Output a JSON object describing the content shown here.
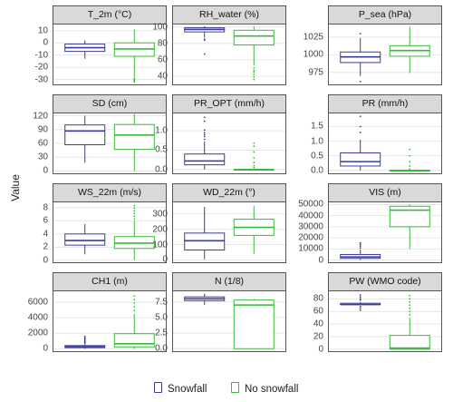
{
  "y_axis_label": "Value",
  "colors": {
    "snowfall": "#3b3b98",
    "no_snowfall": "#3ab93a",
    "grid": "#e6e6e6",
    "frame": "#555555"
  },
  "legend": [
    {
      "label": "Snowfall",
      "color": "#3b3b98"
    },
    {
      "label": "No snowfall",
      "color": "#3ab93a"
    }
  ],
  "chart_data": [
    {
      "type": "box",
      "title": "T_2m (°C)",
      "ylim": [
        -34,
        15
      ],
      "yticks": [
        "10",
        "0",
        "-10",
        "-20",
        "-30"
      ],
      "ytick_values": [
        10,
        0,
        -10,
        -20,
        -30
      ],
      "series": [
        {
          "name": "Snowfall",
          "whisker_low": -13,
          "q1": -7,
          "median": -4,
          "q3": -1,
          "whisker_high": 2,
          "outliers": []
        },
        {
          "name": "No snowfall",
          "whisker_low": -28,
          "q1": -11,
          "median": -5,
          "q3": 0,
          "whisker_high": 11,
          "outliers": [
            -29,
            -30,
            -31,
            -32
          ]
        }
      ]
    },
    {
      "type": "box",
      "title": "RH_water (%)",
      "ylim": [
        30,
        103
      ],
      "yticks": [
        "100",
        "80",
        "60",
        "40"
      ],
      "ytick_values": [
        100,
        80,
        60,
        40
      ],
      "series": [
        {
          "name": "Snowfall",
          "whisker_low": 87,
          "q1": 94,
          "median": 97,
          "q3": 99,
          "whisker_high": 101,
          "outliers": [
            85,
            84,
            67
          ]
        },
        {
          "name": "No snowfall",
          "whisker_low": 53,
          "q1": 78,
          "median": 89,
          "q3": 96,
          "whisker_high": 101,
          "outliers": [
            50,
            47,
            45,
            42,
            39,
            36
          ]
        }
      ]
    },
    {
      "type": "box",
      "title": "P_sea (hPa)",
      "ylim": [
        958,
        1043
      ],
      "yticks": [
        "1025",
        "1000",
        "975"
      ],
      "ytick_values": [
        1025,
        1000,
        975
      ],
      "series": [
        {
          "name": "Snowfall",
          "whisker_low": 970,
          "q1": 989,
          "median": 997,
          "q3": 1004,
          "whisker_high": 1024,
          "outliers": [
            1030,
            962
          ]
        },
        {
          "name": "No snowfall",
          "whisker_low": 974,
          "q1": 998,
          "median": 1006,
          "q3": 1013,
          "whisker_high": 1040,
          "outliers": []
        }
      ]
    },
    {
      "type": "box",
      "title": "SD (cm)",
      "ylim": [
        -5,
        125
      ],
      "yticks": [
        "120",
        "90",
        "60",
        "30",
        "0"
      ],
      "ytick_values": [
        120,
        90,
        60,
        30,
        0
      ],
      "series": [
        {
          "name": "Snowfall",
          "whisker_low": 18,
          "q1": 57,
          "median": 87,
          "q3": 100,
          "whisker_high": 120,
          "outliers": []
        },
        {
          "name": "No snowfall",
          "whisker_low": 0,
          "q1": 47,
          "median": 78,
          "q3": 101,
          "whisker_high": 124,
          "outliers": []
        }
      ]
    },
    {
      "type": "box",
      "title": "PR_OPT (mm/h)",
      "ylim": [
        -0.1,
        1.45
      ],
      "yticks": [
        "1.0",
        "0.5",
        "0.0"
      ],
      "ytick_values": [
        1.0,
        0.5,
        0.0
      ],
      "series": [
        {
          "name": "Snowfall",
          "whisker_low": 0.0,
          "q1": 0.12,
          "median": 0.22,
          "q3": 0.4,
          "whisker_high": 0.72,
          "outliers": [
            0.78,
            0.85,
            0.9,
            0.95,
            1.02,
            1.25,
            1.35
          ]
        },
        {
          "name": "No snowfall",
          "whisker_low": 0.0,
          "q1": 0.0,
          "median": 0.0,
          "q3": 0.0,
          "whisker_high": 0.0,
          "outliers": [
            0.05,
            0.1,
            0.18,
            0.3,
            0.45,
            0.6,
            0.68
          ]
        }
      ]
    },
    {
      "type": "box",
      "title": "PR (mm/h)",
      "ylim": [
        -0.1,
        1.95
      ],
      "yticks": [
        "1.5",
        "1.0",
        "0.5",
        "0.0"
      ],
      "ytick_values": [
        1.5,
        1.0,
        0.5,
        0.0
      ],
      "series": [
        {
          "name": "Snowfall",
          "whisker_low": 0.0,
          "q1": 0.15,
          "median": 0.3,
          "q3": 0.6,
          "whisker_high": 1.05,
          "outliers": [
            1.3,
            1.5,
            1.85
          ]
        },
        {
          "name": "No snowfall",
          "whisker_low": 0.0,
          "q1": 0.0,
          "median": 0.0,
          "q3": 0.0,
          "whisker_high": 0.0,
          "outliers": [
            0.05,
            0.15,
            0.3,
            0.5,
            0.72
          ]
        }
      ]
    },
    {
      "type": "box",
      "title": "WS_22m (m/s)",
      "ylim": [
        -0.3,
        8.8
      ],
      "yticks": [
        "8",
        "6",
        "4",
        "2",
        "0"
      ],
      "ytick_values": [
        8,
        6,
        4,
        2,
        0
      ],
      "series": [
        {
          "name": "Snowfall",
          "whisker_low": 0.9,
          "q1": 2.3,
          "median": 3.0,
          "q3": 4.0,
          "whisker_high": 5.5,
          "outliers": []
        },
        {
          "name": "No snowfall",
          "whisker_low": 0.0,
          "q1": 1.8,
          "median": 2.6,
          "q3": 3.6,
          "whisker_high": 6.0,
          "outliers": [
            6.3,
            6.7,
            7.1,
            7.5,
            7.9,
            8.3
          ]
        }
      ]
    },
    {
      "type": "box",
      "title": "WD_22m (°)",
      "ylim": [
        -15,
        375
      ],
      "yticks": [
        "300",
        "200",
        "100",
        "0"
      ],
      "ytick_values": [
        300,
        200,
        100,
        0
      ],
      "series": [
        {
          "name": "Snowfall",
          "whisker_low": 5,
          "q1": 65,
          "median": 125,
          "q3": 175,
          "whisker_high": 345,
          "outliers": []
        },
        {
          "name": "No snowfall",
          "whisker_low": 40,
          "q1": 160,
          "median": 212,
          "q3": 265,
          "whisker_high": 352,
          "outliers": []
        }
      ]
    },
    {
      "type": "box",
      "title": "VIS (m)",
      "ylim": [
        -2000,
        52000
      ],
      "yticks": [
        "50000",
        "40000",
        "30000",
        "20000",
        "10000",
        "0"
      ],
      "ytick_values": [
        50000,
        40000,
        30000,
        20000,
        10000,
        0
      ],
      "series": [
        {
          "name": "Snowfall",
          "whisker_low": 100,
          "q1": 1500,
          "median": 2800,
          "q3": 5000,
          "whisker_high": 9500,
          "outliers": [
            11000,
            12500,
            14000,
            15500
          ]
        },
        {
          "name": "No snowfall",
          "whisker_low": 10000,
          "q1": 30000,
          "median": 45000,
          "q3": 48500,
          "whisker_high": 50000,
          "outliers": []
        }
      ]
    },
    {
      "type": "box",
      "title": "CH1 (m)",
      "ylim": [
        -300,
        7400
      ],
      "yticks": [
        "6000",
        "4000",
        "2000",
        "0"
      ],
      "ytick_values": [
        6000,
        4000,
        2000,
        0
      ],
      "series": [
        {
          "name": "Snowfall",
          "whisker_low": 0,
          "q1": 150,
          "median": 280,
          "q3": 420,
          "whisker_high": 700,
          "outliers": [
            800,
            950,
            1100,
            1250,
            1400,
            1600
          ]
        },
        {
          "name": "No snowfall",
          "whisker_low": 0,
          "q1": 250,
          "median": 650,
          "q3": 1950,
          "whisker_high": 4500,
          "outliers": [
            4900,
            5400,
            5900,
            6300,
            6800
          ]
        }
      ]
    },
    {
      "type": "box",
      "title": "N (1/8)",
      "ylim": [
        -0.4,
        9.2
      ],
      "yticks": [
        "7.5",
        "5.0",
        "2.5",
        "0.0"
      ],
      "ytick_values": [
        7.5,
        5.0,
        2.5,
        0.0
      ],
      "series": [
        {
          "name": "Snowfall",
          "whisker_low": 7.0,
          "q1": 7.7,
          "median": 8.0,
          "q3": 8.3,
          "whisker_high": 8.8,
          "outliers": []
        },
        {
          "name": "No snowfall",
          "whisker_low": 0,
          "q1": 0,
          "median": 7.0,
          "q3": 7.8,
          "whisker_high": 8.0,
          "outliers": []
        }
      ]
    },
    {
      "type": "box",
      "title": "PW (WMO code)",
      "ylim": [
        -3,
        92
      ],
      "yticks": [
        "80",
        "60",
        "40",
        "20",
        "0"
      ],
      "ytick_values": [
        80,
        60,
        40,
        20,
        0
      ],
      "series": [
        {
          "name": "Snowfall",
          "whisker_low": 71,
          "q1": 71,
          "median": 71,
          "q3": 73,
          "whisker_high": 75,
          "outliers": [
            62,
            65,
            68,
            78,
            80,
            83,
            86
          ]
        },
        {
          "name": "No snowfall",
          "whisker_low": 0,
          "q1": 0,
          "median": 2,
          "q3": 22,
          "whisker_high": 50,
          "outliers": [
            55,
            60,
            65,
            70,
            75,
            80,
            85
          ]
        }
      ]
    }
  ]
}
